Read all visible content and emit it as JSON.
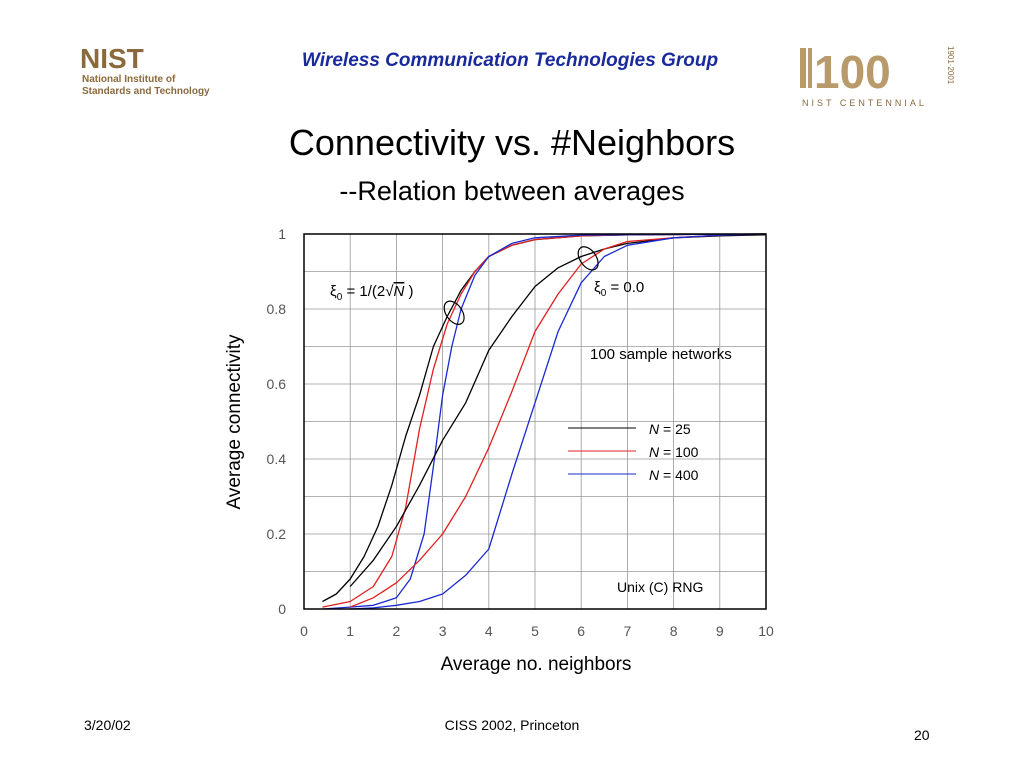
{
  "slide": {
    "header": "Wireless Communication Technologies Group",
    "title": "Connectivity vs. #Neighbors",
    "subtitle": "--Relation between averages",
    "footer_date": "3/20/02",
    "footer_conference": "CISS 2002, Princeton",
    "page_number": "20"
  },
  "logos": {
    "left": {
      "mark": "NIST",
      "line1": "National Institute of",
      "line2": "Standards and Technology",
      "color": "#8a6a3c"
    },
    "right": {
      "mark": "100",
      "caption": "NIST CENTENNIAL",
      "years": "1901·2001",
      "color": "#b99a6a"
    }
  },
  "chart_data": {
    "type": "line",
    "xlabel": "Average no. neighbors",
    "ylabel": "Average connectivity",
    "xlim": [
      0,
      10
    ],
    "ylim": [
      0,
      1
    ],
    "xticks": [
      "0",
      "1",
      "2",
      "3",
      "4",
      "5",
      "6",
      "7",
      "8",
      "9",
      "10"
    ],
    "yticks": [
      "0",
      "0.2",
      "0.4",
      "0.6",
      "0.8",
      "1"
    ],
    "grid": true,
    "legend_position": "center-right",
    "annotations": {
      "xi_formula_prefix": "ξ",
      "xi_formula_sub": "0",
      "xi_formula_mid": " = 1/(2√",
      "xi_formula_var": "N",
      "xi_formula_end": " )",
      "xi_zero_prefix": "ξ",
      "xi_zero_sub": "0",
      "xi_zero_value": " = 0.0",
      "samples": "100 sample networks",
      "rng": "Unix (C) RNG"
    },
    "series": [
      {
        "name": "N = 25",
        "label_var": "N",
        "label_rest": " = 25",
        "group": "xi0=1/(2√N)",
        "color": "#000000",
        "x": [
          0.4,
          0.7,
          1.0,
          1.3,
          1.6,
          1.9,
          2.2,
          2.5,
          2.8,
          3.1,
          3.4,
          3.7,
          4.0,
          4.5,
          5.0,
          6.0,
          7.0,
          10.0
        ],
        "y": [
          0.02,
          0.04,
          0.08,
          0.14,
          0.22,
          0.33,
          0.46,
          0.57,
          0.7,
          0.78,
          0.85,
          0.9,
          0.94,
          0.97,
          0.985,
          0.995,
          0.998,
          1.0
        ]
      },
      {
        "name": "N = 100",
        "label_var": "N",
        "label_rest": " = 100",
        "group": "xi0=1/(2√N)",
        "color": "#e02020",
        "x": [
          0.4,
          1.0,
          1.5,
          1.9,
          2.2,
          2.5,
          2.8,
          3.1,
          3.4,
          3.7,
          4.0,
          4.5,
          5.0,
          6.0,
          7.0,
          10.0
        ],
        "y": [
          0.005,
          0.02,
          0.06,
          0.14,
          0.27,
          0.48,
          0.64,
          0.76,
          0.84,
          0.9,
          0.94,
          0.97,
          0.985,
          0.995,
          0.998,
          1.0
        ]
      },
      {
        "name": "N = 400",
        "label_var": "N",
        "label_rest": " = 400",
        "group": "xi0=1/(2√N)",
        "color": "#1a2ad0",
        "x": [
          0.4,
          1.0,
          1.5,
          2.0,
          2.3,
          2.6,
          2.8,
          3.0,
          3.2,
          3.4,
          3.7,
          4.0,
          4.5,
          5.0,
          6.0,
          10.0
        ],
        "y": [
          0.0,
          0.005,
          0.01,
          0.03,
          0.08,
          0.2,
          0.38,
          0.57,
          0.7,
          0.8,
          0.89,
          0.94,
          0.975,
          0.99,
          0.997,
          1.0
        ]
      },
      {
        "name": "N = 25",
        "group": "xi0=0.0",
        "color": "#000000",
        "x": [
          1.0,
          1.5,
          2.0,
          2.5,
          3.0,
          3.5,
          4.0,
          4.5,
          5.0,
          5.5,
          6.0,
          6.5,
          7.0,
          8.0,
          9.0,
          10.0
        ],
        "y": [
          0.06,
          0.13,
          0.22,
          0.33,
          0.45,
          0.55,
          0.69,
          0.78,
          0.86,
          0.91,
          0.94,
          0.96,
          0.975,
          0.99,
          0.995,
          0.998
        ]
      },
      {
        "name": "N = 100",
        "group": "xi0=0.0",
        "color": "#e02020",
        "x": [
          1.0,
          1.5,
          2.0,
          2.5,
          3.0,
          3.5,
          4.0,
          4.5,
          5.0,
          5.5,
          6.0,
          6.5,
          7.0,
          8.0,
          9.0,
          10.0
        ],
        "y": [
          0.005,
          0.03,
          0.07,
          0.13,
          0.2,
          0.3,
          0.43,
          0.58,
          0.74,
          0.84,
          0.92,
          0.96,
          0.98,
          0.99,
          0.997,
          1.0
        ]
      },
      {
        "name": "N = 400",
        "group": "xi0=0.0",
        "color": "#1a2ad0",
        "x": [
          1.0,
          1.5,
          2.0,
          2.5,
          3.0,
          3.5,
          4.0,
          4.5,
          5.0,
          5.5,
          6.0,
          6.5,
          7.0,
          8.0,
          9.0,
          10.0
        ],
        "y": [
          0.0,
          0.003,
          0.01,
          0.02,
          0.04,
          0.09,
          0.16,
          0.36,
          0.55,
          0.74,
          0.87,
          0.94,
          0.97,
          0.99,
          0.997,
          1.0
        ]
      }
    ],
    "ellipse_markers": [
      {
        "cx": 3.25,
        "cy": 0.79
      },
      {
        "cx": 6.15,
        "cy": 0.935
      }
    ]
  }
}
